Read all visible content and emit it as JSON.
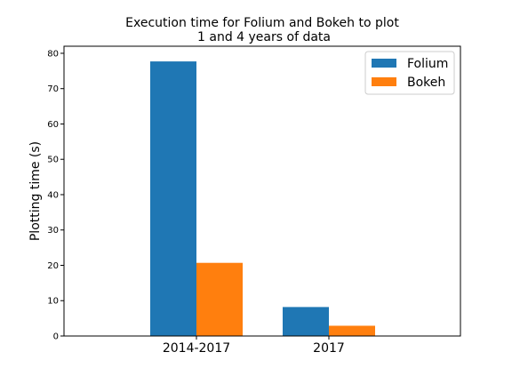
{
  "chart_data": {
    "type": "bar",
    "title_lines": [
      "Execution time for Folium and Bokeh to plot",
      "1 and 4 years of data"
    ],
    "xlabel": "",
    "ylabel": "Plotting time (s)",
    "categories": [
      "2014-2017",
      "2017"
    ],
    "series": [
      {
        "name": "Folium",
        "color": "#1f77b4",
        "values": [
          77.7,
          8.2
        ]
      },
      {
        "name": "Bokeh",
        "color": "#ff7f0e",
        "values": [
          20.7,
          2.9
        ]
      }
    ],
    "ylim": [
      0,
      82
    ],
    "yticks": [
      "0",
      "10",
      "20",
      "30",
      "40",
      "50",
      "60",
      "70",
      "80"
    ],
    "legend_position": "top-right",
    "grid": false
  }
}
